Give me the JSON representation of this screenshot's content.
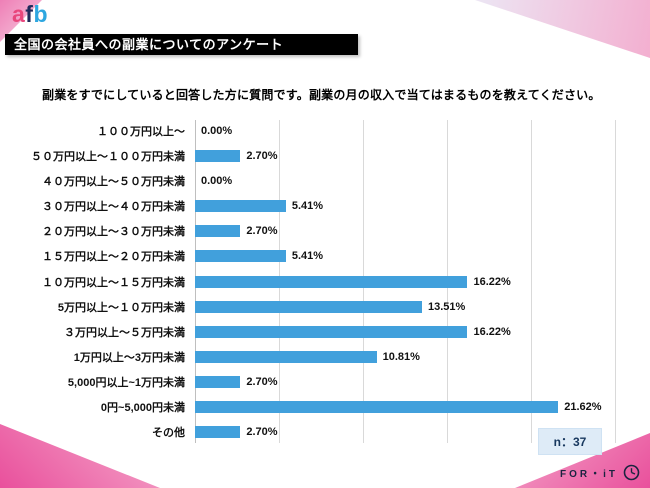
{
  "logo": {
    "a": "a",
    "f": "f",
    "b": "b"
  },
  "title_bar": {
    "text": "全国の会社員への副業についてのアンケート"
  },
  "question": "副業をすでにしていると回答した方に質問です。副業の月の収入で当てはまるものを教えてください。",
  "chart_data": {
    "type": "bar",
    "orientation": "horizontal",
    "title": "全国の会社員への副業についてのアンケート",
    "categories": [
      "１００万円以上～",
      "５０万円以上～１００万円未満",
      "４０万円以上～５０万円未満",
      "３０万円以上～４０万円未満",
      "２０万円以上～３０万円未満",
      "１５万円以上～２０万円未満",
      "１０万円以上～１５万円未満",
      "5万円以上～１０万円未満",
      "３万円以上～５万円未満",
      "1万円以上～3万円未満",
      "5,000円以上~1万円未満",
      "0円~5,000円未満",
      "その他"
    ],
    "values": [
      0.0,
      2.7,
      0.0,
      5.41,
      2.7,
      5.41,
      16.22,
      13.51,
      16.22,
      10.81,
      2.7,
      21.62,
      2.7
    ],
    "value_labels": [
      "0.00%",
      "2.70%",
      "0.00%",
      "5.41%",
      "2.70%",
      "5.41%",
      "16.22%",
      "13.51%",
      "16.22%",
      "10.81%",
      "2.70%",
      "21.62%",
      "2.70%"
    ],
    "xlim": [
      0,
      25
    ],
    "x_gridlines": [
      0,
      5,
      10,
      15,
      20,
      25
    ],
    "grid": true,
    "legend": "none",
    "bar_color": "#41a0dc"
  },
  "sample_size": {
    "label": "n：37"
  },
  "footer": {
    "brand": "FOR・iT"
  },
  "colors": {
    "bar": "#41a0dc",
    "title_bar_bg": "#000000",
    "title_bar_text": "#ffffff",
    "n_box_bg": "#deebf7",
    "accent_pink": "#e9509c",
    "logo_a": "#e8467c",
    "logo_f": "#1f2a5a",
    "logo_b": "#2ea7e0"
  }
}
